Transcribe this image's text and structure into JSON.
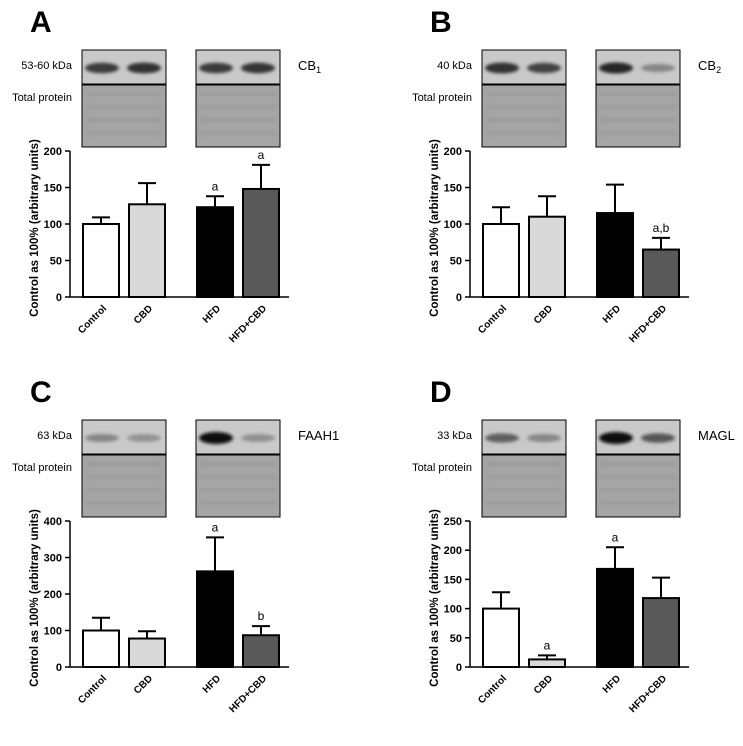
{
  "chart_data": [
    {
      "type": "bar",
      "panel": "A",
      "target": "CB",
      "target_sub": "1",
      "kda": "53-60 kDa",
      "total_protein_label": "Total protein",
      "ylabel": "Control as 100% (arbitrary units)",
      "ylim": [
        0,
        200
      ],
      "yticks": [
        "0",
        "50",
        "100",
        "150",
        "200"
      ],
      "categories": [
        "Control",
        "CBD",
        "HFD",
        "HFD+CBD"
      ],
      "values": [
        100,
        127,
        123,
        148
      ],
      "errors": [
        9,
        29,
        15,
        33
      ],
      "annotations": [
        "",
        "",
        "a",
        "a"
      ]
    },
    {
      "type": "bar",
      "panel": "B",
      "target": "CB",
      "target_sub": "2",
      "kda": "40 kDa",
      "total_protein_label": "Total protein",
      "ylabel": "Control as 100% (arbitrary units)",
      "ylim": [
        0,
        200
      ],
      "yticks": [
        "0",
        "50",
        "100",
        "150",
        "200"
      ],
      "categories": [
        "Control",
        "CBD",
        "HFD",
        "HFD+CBD"
      ],
      "values": [
        100,
        110,
        115,
        65
      ],
      "errors": [
        23,
        28,
        39,
        16
      ],
      "annotations": [
        "",
        "",
        "",
        "a,b"
      ]
    },
    {
      "type": "bar",
      "panel": "C",
      "target": "FAAH1",
      "target_sub": "",
      "kda": "63 kDa",
      "total_protein_label": "Total protein",
      "ylabel": "Control as 100% (arbitrary units)",
      "ylim": [
        0,
        400
      ],
      "yticks": [
        "0",
        "100",
        "200",
        "300",
        "400"
      ],
      "categories": [
        "Control",
        "CBD",
        "HFD",
        "HFD+CBD"
      ],
      "values": [
        100,
        78,
        262,
        87
      ],
      "errors": [
        35,
        20,
        93,
        25
      ],
      "annotations": [
        "",
        "",
        "a",
        "b"
      ]
    },
    {
      "type": "bar",
      "panel": "D",
      "target": "MAGL",
      "target_sub": "",
      "kda": "33 kDa",
      "total_protein_label": "Total protein",
      "ylabel": "Control as 100% (arbitrary units)",
      "ylim": [
        0,
        250
      ],
      "yticks": [
        "0",
        "50",
        "100",
        "150",
        "200",
        "250"
      ],
      "categories": [
        "Control",
        "CBD",
        "HFD",
        "HFD+CBD"
      ],
      "values": [
        100,
        13,
        168,
        118
      ],
      "errors": [
        28,
        7,
        37,
        35
      ],
      "annotations": [
        "",
        "a",
        "a",
        ""
      ]
    }
  ],
  "colors": {
    "bars": [
      "#ffffff",
      "#d9d9d9",
      "#000000",
      "#595959"
    ],
    "blot_background": "#c9c9c9",
    "protein_stain": "#a5a5a5"
  },
  "band_intensities": [
    [
      0.75,
      0.8,
      0.75,
      0.78
    ],
    [
      0.8,
      0.7,
      0.85,
      0.35
    ],
    [
      0.35,
      0.28,
      1.0,
      0.3
    ],
    [
      0.55,
      0.35,
      1.0,
      0.6
    ]
  ]
}
